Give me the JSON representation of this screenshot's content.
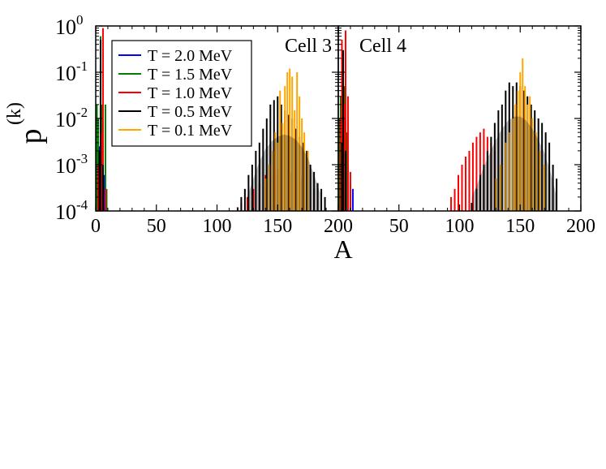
{
  "figure": {
    "ylabel_base": "p",
    "ylabel_sup": "(k)",
    "xlabel": "A"
  },
  "chart_data": [
    {
      "type": "bar",
      "panel_label": "Cell 3",
      "x_scale": "linear",
      "y_scale": "log",
      "xlim": [
        0,
        200
      ],
      "ylim": [
        0.0001,
        1
      ],
      "x_ticks": [
        0,
        50,
        100,
        150,
        200
      ],
      "x_tick_labels": [
        "0",
        "50",
        "100",
        "150",
        "200"
      ],
      "y_ticks": [
        {
          "base": "10",
          "exp": "0"
        },
        {
          "base": "10",
          "exp": "-1"
        },
        {
          "base": "10",
          "exp": "-2"
        },
        {
          "base": "10",
          "exp": "-3"
        },
        {
          "base": "10",
          "exp": "-4"
        }
      ],
      "legend_position": "top-left",
      "series": [
        {
          "name": "T = 2.0 MeV",
          "color": "#0000ff",
          "points": [
            [
              1,
              0.002
            ],
            [
              2,
              0.003
            ],
            [
              3,
              0.0025
            ],
            [
              4,
              0.15
            ],
            [
              5,
              0.01
            ],
            [
              6,
              0.002
            ],
            [
              7,
              0.0006
            ]
          ]
        },
        {
          "name": "T = 1.5 MeV",
          "color": "#008000",
          "points": [
            [
              1,
              0.02
            ],
            [
              2,
              0.01
            ],
            [
              3,
              0.0005
            ],
            [
              4,
              0.6
            ],
            [
              5,
              0.02
            ],
            [
              6,
              0.003
            ],
            [
              8,
              0.02
            ],
            [
              9,
              0.0003
            ]
          ]
        },
        {
          "name": "T = 1.0 MeV",
          "color": "#ff0000",
          "points": [
            [
              2,
              0.001
            ],
            [
              4,
              0.01
            ],
            [
              5,
              0.005
            ],
            [
              6,
              0.9
            ],
            [
              8,
              0.0003
            ],
            [
              120,
              0.00015
            ],
            [
              125,
              0.0002
            ],
            [
              130,
              0.0003
            ],
            [
              135,
              0.0004
            ],
            [
              140,
              0.0006
            ],
            [
              150,
              0.0008
            ],
            [
              160,
              0.0007
            ],
            [
              170,
              0.0005
            ],
            [
              180,
              0.0003
            ]
          ]
        },
        {
          "name": "T = 0.5 MeV",
          "color": "#000000",
          "points": [
            [
              3,
              0.002
            ],
            [
              4,
              0.5
            ],
            [
              6,
              0.001
            ],
            [
              117,
              0.00012
            ],
            [
              120,
              0.0002
            ],
            [
              123,
              0.0003
            ],
            [
              126,
              0.0006
            ],
            [
              129,
              0.001
            ],
            [
              132,
              0.002
            ],
            [
              135,
              0.003
            ],
            [
              138,
              0.006
            ],
            [
              141,
              0.01
            ],
            [
              144,
              0.02
            ],
            [
              147,
              0.025
            ],
            [
              150,
              0.03
            ],
            [
              153,
              0.02
            ],
            [
              156,
              0.015
            ],
            [
              159,
              0.012
            ],
            [
              162,
              0.01
            ],
            [
              165,
              0.006
            ],
            [
              168,
              0.004
            ],
            [
              171,
              0.003
            ],
            [
              174,
              0.002
            ],
            [
              177,
              0.001
            ],
            [
              180,
              0.0007
            ],
            [
              183,
              0.0004
            ],
            [
              186,
              0.0003
            ],
            [
              189,
              0.0002
            ]
          ]
        },
        {
          "name": "T = 0.1 MeV",
          "color": "#ffa500",
          "points": [
            [
              140,
              0.0005
            ],
            [
              143,
              0.001
            ],
            [
              146,
              0.002
            ],
            [
              148,
              0.005
            ],
            [
              150,
              0.003
            ],
            [
              152,
              0.04
            ],
            [
              154,
              0.008
            ],
            [
              156,
              0.05
            ],
            [
              158,
              0.1
            ],
            [
              160,
              0.12
            ],
            [
              162,
              0.08
            ],
            [
              164,
              0.015
            ],
            [
              166,
              0.1
            ],
            [
              168,
              0.03
            ],
            [
              170,
              0.01
            ],
            [
              172,
              0.005
            ],
            [
              175,
              0.002
            ]
          ]
        }
      ],
      "envelope": {
        "color": "#000000",
        "points": [
          [
            125,
            0.0002
          ],
          [
            130,
            0.0005
          ],
          [
            135,
            0.0012
          ],
          [
            140,
            0.0022
          ],
          [
            145,
            0.0032
          ],
          [
            150,
            0.004
          ],
          [
            155,
            0.0045
          ],
          [
            160,
            0.0042
          ],
          [
            165,
            0.0035
          ],
          [
            170,
            0.0024
          ],
          [
            175,
            0.0014
          ],
          [
            180,
            0.0006
          ],
          [
            185,
            0.00025
          ]
        ]
      }
    },
    {
      "type": "bar",
      "panel_label": "Cell 4",
      "x_scale": "linear",
      "y_scale": "log",
      "xlim": [
        0,
        200
      ],
      "ylim": [
        0.0001,
        1
      ],
      "x_ticks": [
        0,
        50,
        100,
        150,
        200
      ],
      "x_tick_labels": [
        "",
        "50",
        "100",
        "150",
        "200"
      ],
      "series": [
        {
          "name": "T = 2.0 MeV",
          "color": "#0000ff",
          "points": [
            [
              1,
              0.003
            ],
            [
              2,
              0.005
            ],
            [
              3,
              0.004
            ],
            [
              4,
              0.01
            ],
            [
              5,
              0.02
            ],
            [
              6,
              0.008
            ],
            [
              7,
              0.003
            ],
            [
              8,
              0.001
            ],
            [
              10,
              0.0004
            ],
            [
              12,
              0.0003
            ]
          ]
        },
        {
          "name": "T = 1.5 MeV",
          "color": "#008000",
          "points": [
            [
              1,
              0.01
            ],
            [
              2,
              0.03
            ],
            [
              3,
              0.02
            ],
            [
              4,
              0.2
            ],
            [
              5,
              0.05
            ],
            [
              6,
              0.01
            ],
            [
              7,
              0.005
            ],
            [
              8,
              0.001
            ]
          ]
        },
        {
          "name": "T = 1.0 MeV",
          "color": "#ff0000",
          "points": [
            [
              2,
              0.01
            ],
            [
              3,
              0.5
            ],
            [
              5,
              0.02
            ],
            [
              6,
              0.8
            ],
            [
              8,
              0.03
            ],
            [
              10,
              0.0007
            ],
            [
              93,
              0.0002
            ],
            [
              96,
              0.0003
            ],
            [
              99,
              0.0006
            ],
            [
              102,
              0.001
            ],
            [
              105,
              0.0015
            ],
            [
              108,
              0.002
            ],
            [
              111,
              0.003
            ],
            [
              114,
              0.004
            ],
            [
              117,
              0.005
            ],
            [
              120,
              0.006
            ],
            [
              123,
              0.004
            ],
            [
              126,
              0.003
            ],
            [
              129,
              0.002
            ]
          ]
        },
        {
          "name": "T = 0.5 MeV",
          "color": "#000000",
          "points": [
            [
              3,
              0.003
            ],
            [
              4,
              0.3
            ],
            [
              6,
              0.002
            ],
            [
              110,
              0.00015
            ],
            [
              114,
              0.0003
            ],
            [
              117,
              0.0006
            ],
            [
              120,
              0.001
            ],
            [
              123,
              0.002
            ],
            [
              126,
              0.004
            ],
            [
              129,
              0.008
            ],
            [
              132,
              0.015
            ],
            [
              135,
              0.02
            ],
            [
              138,
              0.04
            ],
            [
              141,
              0.06
            ],
            [
              144,
              0.05
            ],
            [
              147,
              0.06
            ],
            [
              150,
              0.05
            ],
            [
              153,
              0.04
            ],
            [
              156,
              0.03
            ],
            [
              159,
              0.02
            ],
            [
              162,
              0.015
            ],
            [
              165,
              0.01
            ],
            [
              168,
              0.008
            ],
            [
              171,
              0.005
            ],
            [
              174,
              0.003
            ],
            [
              177,
              0.001
            ],
            [
              180,
              0.0005
            ]
          ]
        },
        {
          "name": "T = 0.1 MeV",
          "color": "#ffa500",
          "points": [
            [
              130,
              0.0005
            ],
            [
              134,
              0.001
            ],
            [
              138,
              0.003
            ],
            [
              141,
              0.005
            ],
            [
              144,
              0.01
            ],
            [
              146,
              0.02
            ],
            [
              148,
              0.04
            ],
            [
              150,
              0.1
            ],
            [
              152,
              0.2
            ],
            [
              154,
              0.05
            ],
            [
              156,
              0.02
            ],
            [
              158,
              0.03
            ],
            [
              160,
              0.01
            ],
            [
              163,
              0.005
            ],
            [
              166,
              0.002
            ],
            [
              170,
              0.001
            ]
          ]
        }
      ],
      "envelope": {
        "color": "#000000",
        "points": [
          [
            110,
            0.0002
          ],
          [
            115,
            0.0004
          ],
          [
            120,
            0.0009
          ],
          [
            125,
            0.0018
          ],
          [
            130,
            0.0035
          ],
          [
            135,
            0.006
          ],
          [
            140,
            0.009
          ],
          [
            145,
            0.011
          ],
          [
            150,
            0.011
          ],
          [
            155,
            0.009
          ],
          [
            160,
            0.006
          ],
          [
            165,
            0.0035
          ],
          [
            170,
            0.0018
          ],
          [
            175,
            0.0007
          ],
          [
            180,
            0.0002
          ]
        ]
      }
    }
  ]
}
